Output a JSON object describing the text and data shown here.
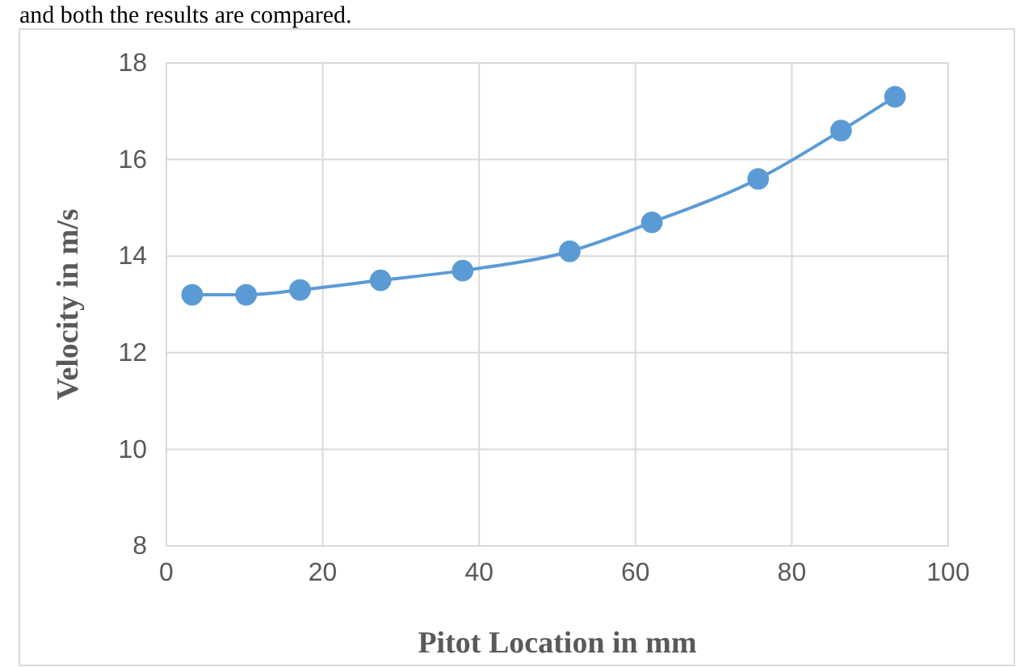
{
  "chart_data": {
    "type": "line",
    "xlabel": "Pitot Location in  mm",
    "ylabel": "Velocity in  m/s",
    "annotations": [
      "and both the results are compared."
    ],
    "x": [
      3.3,
      10.2,
      17.1,
      27.4,
      37.9,
      51.6,
      62.1,
      75.7,
      86.3,
      93.2
    ],
    "series": [
      {
        "color": "#5b9bd5",
        "values": [
          13.2,
          13.2,
          13.3,
          13.5,
          13.7,
          14.1,
          14.7,
          15.6,
          16.6,
          17.3
        ]
      }
    ],
    "xlim": [
      0,
      100
    ],
    "xticks": [
      0,
      20,
      40,
      60,
      80,
      100
    ],
    "ylim": [
      8,
      18
    ],
    "yticks": [
      8,
      10,
      12,
      14,
      16,
      18
    ],
    "grid": true,
    "marker": "circle",
    "line_style": "solid"
  }
}
